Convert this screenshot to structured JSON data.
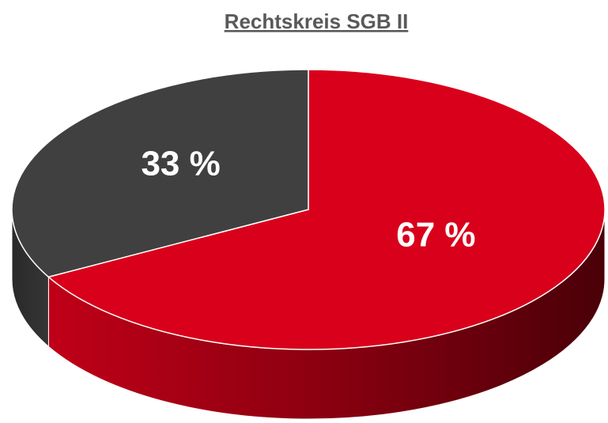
{
  "chart_data": {
    "type": "pie",
    "title": "Rechtskreis SGB II",
    "values": [
      67,
      33
    ],
    "value_labels": [
      "67 %",
      "33 %"
    ],
    "colors": [
      "#d9001b",
      "#404040"
    ],
    "start": "top",
    "direction": "clockwise"
  }
}
